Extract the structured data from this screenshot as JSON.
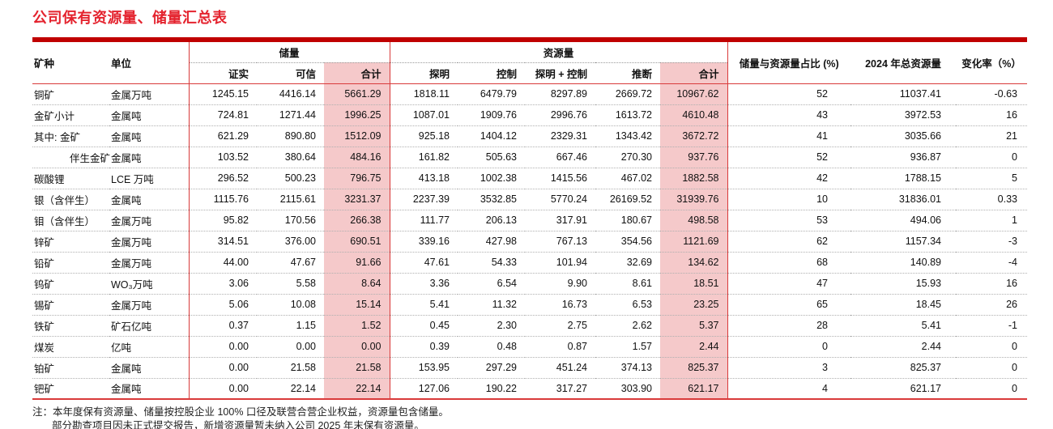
{
  "title": "公司保有资源量、储量汇总表",
  "table": {
    "headers": {
      "mineral": "矿种",
      "unit": "单位",
      "reserves_group": "储量",
      "resources_group": "资源量",
      "reserves_sub": [
        "证实",
        "可信",
        "合计"
      ],
      "resources_sub": [
        "探明",
        "控制",
        "探明 + 控制",
        "推断",
        "合计"
      ],
      "ratio": "储量与资源量占比 (%)",
      "total_2024": "2024 年总资源量",
      "change": "变化率（%）"
    },
    "rows": [
      {
        "mineral": "铜矿",
        "unit": "金属万吨",
        "indent": false,
        "values": [
          "1245.15",
          "4416.14",
          "5661.29",
          "1818.11",
          "6479.79",
          "8297.89",
          "2669.72",
          "10967.62",
          "52",
          "11037.41",
          "-0.63"
        ]
      },
      {
        "mineral": "金矿小计",
        "unit": "金属吨",
        "indent": false,
        "values": [
          "724.81",
          "1271.44",
          "1996.25",
          "1087.01",
          "1909.76",
          "2996.76",
          "1613.72",
          "4610.48",
          "43",
          "3972.53",
          "16"
        ]
      },
      {
        "mineral": "其中: 金矿",
        "unit": "金属吨",
        "indent": false,
        "values": [
          "621.29",
          "890.80",
          "1512.09",
          "925.18",
          "1404.12",
          "2329.31",
          "1343.42",
          "3672.72",
          "41",
          "3035.66",
          "21"
        ]
      },
      {
        "mineral": "伴生金矿",
        "unit": "金属吨",
        "indent": true,
        "values": [
          "103.52",
          "380.64",
          "484.16",
          "161.82",
          "505.63",
          "667.46",
          "270.30",
          "937.76",
          "52",
          "936.87",
          "0"
        ]
      },
      {
        "mineral": "碳酸锂",
        "unit": "LCE 万吨",
        "indent": false,
        "values": [
          "296.52",
          "500.23",
          "796.75",
          "413.18",
          "1002.38",
          "1415.56",
          "467.02",
          "1882.58",
          "42",
          "1788.15",
          "5"
        ]
      },
      {
        "mineral": "银（含伴生）",
        "unit": "金属吨",
        "indent": false,
        "values": [
          "1115.76",
          "2115.61",
          "3231.37",
          "2237.39",
          "3532.85",
          "5770.24",
          "26169.52",
          "31939.76",
          "10",
          "31836.01",
          "0.33"
        ]
      },
      {
        "mineral": "钼（含伴生）",
        "unit": "金属万吨",
        "indent": false,
        "values": [
          "95.82",
          "170.56",
          "266.38",
          "111.77",
          "206.13",
          "317.91",
          "180.67",
          "498.58",
          "53",
          "494.06",
          "1"
        ]
      },
      {
        "mineral": "锌矿",
        "unit": "金属万吨",
        "indent": false,
        "values": [
          "314.51",
          "376.00",
          "690.51",
          "339.16",
          "427.98",
          "767.13",
          "354.56",
          "1121.69",
          "62",
          "1157.34",
          "-3"
        ]
      },
      {
        "mineral": "铅矿",
        "unit": "金属万吨",
        "indent": false,
        "values": [
          "44.00",
          "47.67",
          "91.66",
          "47.61",
          "54.33",
          "101.94",
          "32.69",
          "134.62",
          "68",
          "140.89",
          "-4"
        ]
      },
      {
        "mineral": "钨矿",
        "unit": "WO₃万吨",
        "indent": false,
        "values": [
          "3.06",
          "5.58",
          "8.64",
          "3.36",
          "6.54",
          "9.90",
          "8.61",
          "18.51",
          "47",
          "15.93",
          "16"
        ]
      },
      {
        "mineral": "锡矿",
        "unit": "金属万吨",
        "indent": false,
        "values": [
          "5.06",
          "10.08",
          "15.14",
          "5.41",
          "11.32",
          "16.73",
          "6.53",
          "23.25",
          "65",
          "18.45",
          "26"
        ]
      },
      {
        "mineral": "铁矿",
        "unit": "矿石亿吨",
        "indent": false,
        "values": [
          "0.37",
          "1.15",
          "1.52",
          "0.45",
          "2.30",
          "2.75",
          "2.62",
          "5.37",
          "28",
          "5.41",
          "-1"
        ]
      },
      {
        "mineral": "煤炭",
        "unit": "亿吨",
        "indent": false,
        "values": [
          "0.00",
          "0.00",
          "0.00",
          "0.39",
          "0.48",
          "0.87",
          "1.57",
          "2.44",
          "0",
          "2.44",
          "0"
        ]
      },
      {
        "mineral": "铂矿",
        "unit": "金属吨",
        "indent": false,
        "values": [
          "0.00",
          "21.58",
          "21.58",
          "153.95",
          "297.29",
          "451.24",
          "374.13",
          "825.37",
          "3",
          "825.37",
          "0"
        ]
      },
      {
        "mineral": "钯矿",
        "unit": "金属吨",
        "indent": false,
        "values": [
          "0.00",
          "22.14",
          "22.14",
          "127.06",
          "190.22",
          "317.27",
          "303.90",
          "621.17",
          "4",
          "621.17",
          "0"
        ]
      }
    ]
  },
  "notes": {
    "line1": "注：本年度保有资源量、储量按控股企业 100% 口径及联营合营企业权益，资源量包含储量。",
    "line2": "部分勘查项目因未正式提交报告，新增资源量暂未纳入公司 2025 年末保有资源量。"
  }
}
